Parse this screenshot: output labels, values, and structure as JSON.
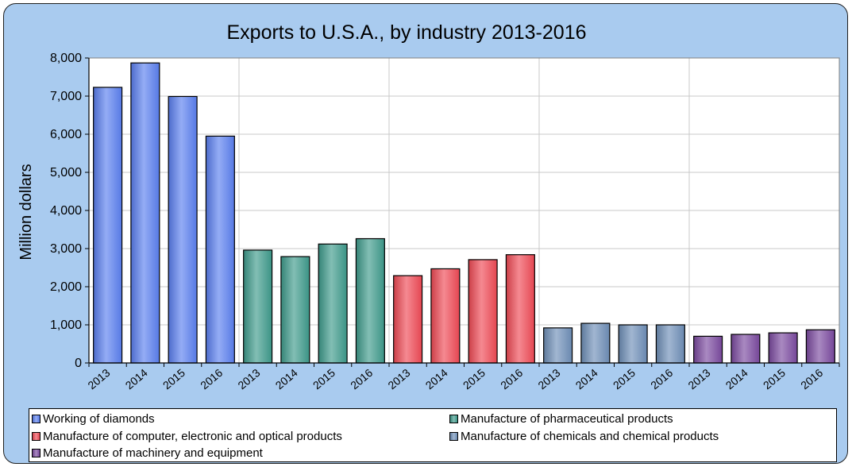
{
  "chart_data": {
    "type": "bar",
    "title": "Exports to U.S.A., by industry 2013-2016",
    "xlabel": "",
    "ylabel": "Million dollars",
    "ylim": [
      0,
      8000
    ],
    "yticks": [
      "0",
      "1,000",
      "2,000",
      "3,000",
      "4,000",
      "5,000",
      "6,000",
      "7,000",
      "8,000"
    ],
    "grid": true,
    "legend_position": "bottom",
    "groups": [
      {
        "name": "Working of diamonds",
        "color": "#5b7ff0",
        "categories": [
          "2013",
          "2014",
          "2015",
          "2016"
        ],
        "values": [
          7230,
          7870,
          6990,
          5950
        ]
      },
      {
        "name": "Manufacture of  pharmaceutical products",
        "color": "#3e9b8c",
        "categories": [
          "2013",
          "2014",
          "2015",
          "2016"
        ],
        "values": [
          2960,
          2790,
          3120,
          3260
        ]
      },
      {
        "name": "Manufacture of computer, electronic and optical products",
        "color": "#f04a55",
        "categories": [
          "2013",
          "2014",
          "2015",
          "2016"
        ],
        "values": [
          2290,
          2470,
          2710,
          2840
        ]
      },
      {
        "name": "Manufacture of chemicals and chemical products",
        "color": "#6f8fb8",
        "categories": [
          "2013",
          "2014",
          "2015",
          "2016"
        ],
        "values": [
          920,
          1040,
          1000,
          1000
        ]
      },
      {
        "name": "Manufacture of machinery and equipment",
        "color": "#7b4aa0",
        "categories": [
          "2013",
          "2014",
          "2015",
          "2016"
        ],
        "values": [
          700,
          750,
          790,
          870
        ]
      }
    ]
  }
}
